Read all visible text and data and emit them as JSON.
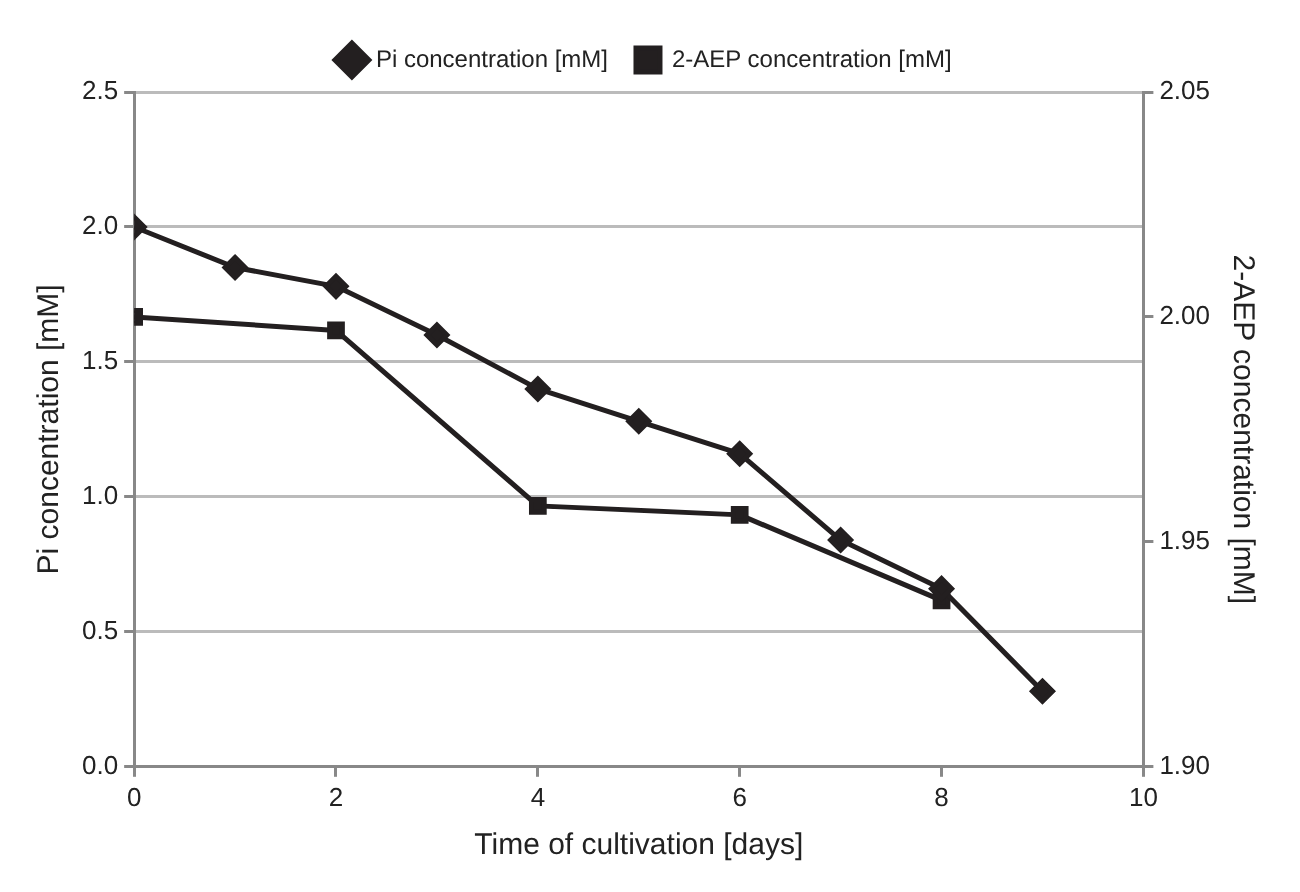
{
  "chart_data": {
    "type": "line",
    "xlabel": "Time of cultivation [days]",
    "ylabel": "Pi concentration [mM]",
    "y2label": "2-AEP concentration [mM]",
    "xlim": [
      0,
      10
    ],
    "xticks": [
      0,
      2,
      4,
      6,
      8,
      10
    ],
    "ylim": [
      0,
      2.5
    ],
    "yticks": [
      {
        "value": 0,
        "label": "0.0"
      },
      {
        "value": 0.5,
        "label": "0.5"
      },
      {
        "value": 1,
        "label": "1.0"
      },
      {
        "value": 1.5,
        "label": "1.5"
      },
      {
        "value": 2,
        "label": "2.0"
      },
      {
        "value": 2.5,
        "label": "2.5"
      }
    ],
    "y2lim": [
      1.9,
      2.05
    ],
    "y2ticks": [
      {
        "value": 1.9,
        "label": "1.90"
      },
      {
        "value": 1.95,
        "label": "1.95"
      },
      {
        "value": 2,
        "label": "2.00"
      },
      {
        "value": 2.05,
        "label": "2.05"
      }
    ],
    "grid": "y",
    "legend": "top",
    "line_style": "solid",
    "series": [
      {
        "name": "Pi concentration [mM]",
        "color": "#231f20",
        "marker": "diamond",
        "x": [
          0,
          1,
          2,
          3,
          4,
          5,
          6,
          7,
          8,
          9
        ],
        "values": [
          2.0,
          1.85,
          1.78,
          1.6,
          1.4,
          1.28,
          1.16,
          0.84,
          0.66,
          0.28
        ]
      },
      {
        "name": "2-AEP concentration [mM]",
        "color": "#231f20",
        "marker": "square",
        "axis": "y2",
        "x": [
          0,
          2,
          4,
          6,
          8
        ],
        "values": [
          2.0,
          1.997,
          1.958,
          1.956,
          1.937
        ]
      }
    ]
  }
}
